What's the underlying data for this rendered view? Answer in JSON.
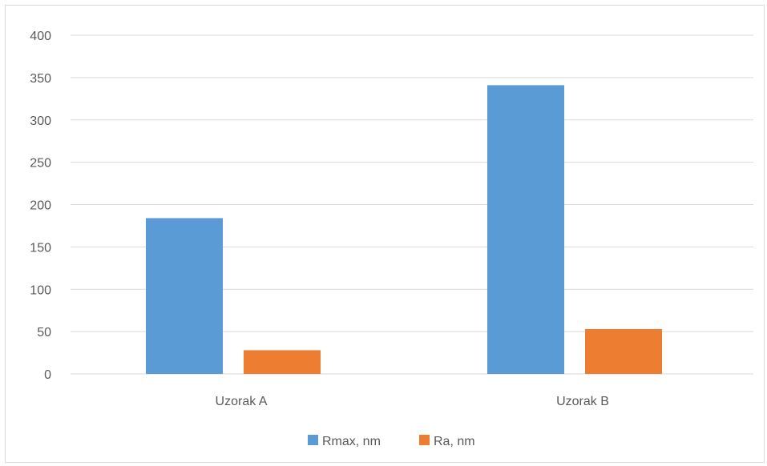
{
  "chart_data": {
    "type": "bar",
    "title": "",
    "xlabel": "",
    "ylabel": "",
    "categories": [
      "Uzorak A",
      "Uzorak B"
    ],
    "series": [
      {
        "name": "Rmax, nm",
        "color": "#5b9bd5",
        "values": [
          184,
          341
        ]
      },
      {
        "name": "Ra, nm",
        "color": "#ed7d31",
        "values": [
          28,
          53
        ]
      }
    ],
    "ylim": [
      0,
      400
    ],
    "yticks": [
      0,
      50,
      100,
      150,
      200,
      250,
      300,
      350,
      400
    ],
    "grid": true,
    "legend_position": "bottom"
  }
}
